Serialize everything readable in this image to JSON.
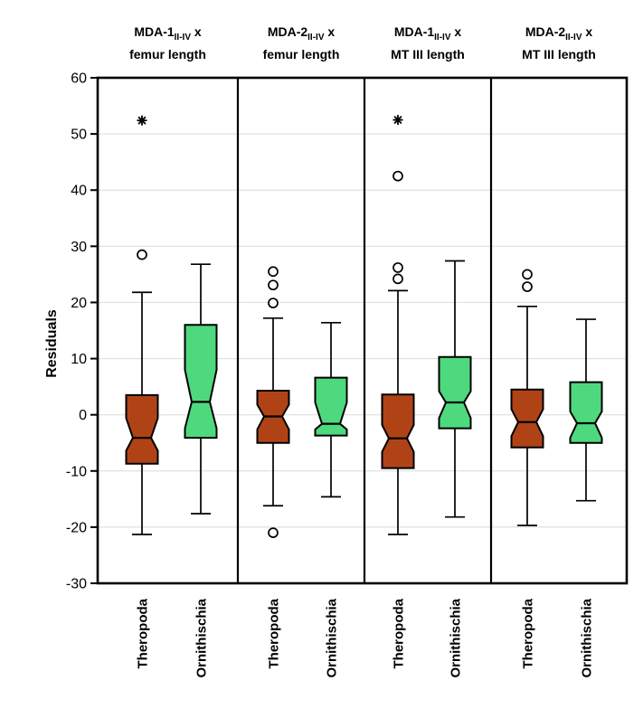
{
  "chart_data": {
    "type": "box",
    "notched": true,
    "title": "",
    "ylabel": "Residuals",
    "ylim": [
      -30,
      60
    ],
    "yticks": [
      60,
      50,
      40,
      30,
      20,
      10,
      0,
      -10,
      -20,
      -30
    ],
    "grid": true,
    "gridline_color": "#e0e0e0",
    "categories": [
      "Theropoda",
      "Ornithischia"
    ],
    "series_colors": {
      "Theropoda": "#b04316",
      "Ornithischia": "#4ed97e"
    },
    "outlier_markers": {
      "circle": "mild outlier",
      "asterisk": "extreme outlier"
    },
    "panels": [
      {
        "title": {
          "prefix": "MDA-1",
          "subscript": "II-IV",
          "suffix": " x",
          "line2": "femur length"
        },
        "boxes": [
          {
            "category": "Theropoda",
            "whisker_low": -21.3,
            "q1": -8.7,
            "notch_low": -6.4,
            "median": -4.1,
            "notch_high": -0.6,
            "q3": 3.5,
            "whisker_high": 21.8,
            "outliers": [
              {
                "value": 28.5,
                "marker": "circle"
              },
              {
                "value": 52.4,
                "marker": "asterisk"
              }
            ]
          },
          {
            "category": "Ornithischia",
            "whisker_low": -17.6,
            "q1": -4.1,
            "notch_low": -2.4,
            "median": 2.3,
            "notch_high": 8.0,
            "q3": 16.0,
            "whisker_high": 26.8,
            "outliers": []
          }
        ]
      },
      {
        "title": {
          "prefix": "MDA-2",
          "subscript": "II-IV",
          "suffix": " x",
          "line2": "femur length"
        },
        "boxes": [
          {
            "category": "Theropoda",
            "whisker_low": -16.2,
            "q1": -5.0,
            "notch_low": -2.6,
            "median": -0.3,
            "notch_high": 1.8,
            "q3": 4.3,
            "whisker_high": 17.2,
            "outliers": [
              {
                "value": 25.5,
                "marker": "circle"
              },
              {
                "value": 23.1,
                "marker": "circle"
              },
              {
                "value": 19.9,
                "marker": "circle"
              },
              {
                "value": -21.0,
                "marker": "circle"
              }
            ]
          },
          {
            "category": "Ornithischia",
            "whisker_low": -14.6,
            "q1": -3.7,
            "notch_low": -2.6,
            "median": -1.6,
            "notch_high": 2.2,
            "q3": 6.6,
            "whisker_high": 16.4,
            "outliers": []
          }
        ]
      },
      {
        "title": {
          "prefix": "MDA-1",
          "subscript": "II-IV",
          "suffix": " x",
          "line2": "MT III length"
        },
        "boxes": [
          {
            "category": "Theropoda",
            "whisker_low": -21.3,
            "q1": -9.5,
            "notch_low": -6.6,
            "median": -4.2,
            "notch_high": -1.8,
            "q3": 3.6,
            "whisker_high": 22.1,
            "outliers": [
              {
                "value": 52.5,
                "marker": "asterisk"
              },
              {
                "value": 42.5,
                "marker": "circle"
              },
              {
                "value": 26.2,
                "marker": "circle"
              },
              {
                "value": 24.2,
                "marker": "circle"
              }
            ]
          },
          {
            "category": "Ornithischia",
            "whisker_low": -18.2,
            "q1": -2.4,
            "notch_low": -0.6,
            "median": 2.2,
            "notch_high": 4.2,
            "q3": 10.3,
            "whisker_high": 27.4,
            "outliers": []
          }
        ]
      },
      {
        "title": {
          "prefix": "MDA-2",
          "subscript": "II-IV",
          "suffix": " x",
          "line2": "MT III length"
        },
        "boxes": [
          {
            "category": "Theropoda",
            "whisker_low": -19.7,
            "q1": -5.8,
            "notch_low": -3.8,
            "median": -1.3,
            "notch_high": 1.0,
            "q3": 4.5,
            "whisker_high": 19.3,
            "outliers": [
              {
                "value": 25.0,
                "marker": "circle"
              },
              {
                "value": 22.8,
                "marker": "circle"
              }
            ]
          },
          {
            "category": "Ornithischia",
            "whisker_low": -15.3,
            "q1": -5.0,
            "notch_low": -4.1,
            "median": -1.5,
            "notch_high": 0.6,
            "q3": 5.8,
            "whisker_high": 17.0,
            "outliers": []
          }
        ]
      }
    ]
  }
}
